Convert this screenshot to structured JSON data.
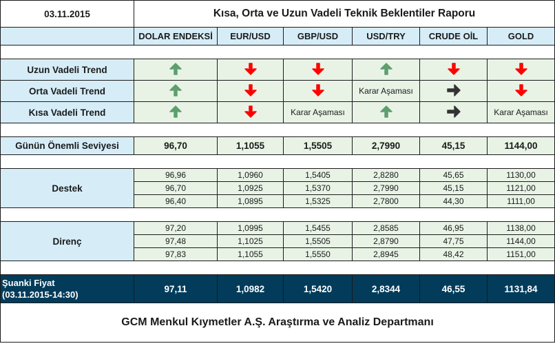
{
  "report": {
    "date": "03.11.2015",
    "title": "Kısa, Orta ve Uzun Vadeli Teknik Beklentiler Raporu",
    "footer": "GCM Menkul Kıymetler A.Ş. Araştırma ve Analiz Departmanı"
  },
  "colors": {
    "label_bg": "#d6edf8",
    "cell_bg": "#e8f3e6",
    "current_bg": "#023c5a",
    "up_arrow": "#5f9e6e",
    "down_arrow": "#ff0000",
    "side_arrow": "#333333"
  },
  "columns": [
    "DOLAR ENDEKSİ",
    "EUR/USD",
    "GBP/USD",
    "USD/TRY",
    "CRUDE OİL",
    "GOLD"
  ],
  "trends": [
    {
      "label": "Uzun Vadeli Trend",
      "values": [
        {
          "icon": "up-arrow-icon",
          "text": ""
        },
        {
          "icon": "down-arrow-icon",
          "text": ""
        },
        {
          "icon": "down-arrow-icon",
          "text": ""
        },
        {
          "icon": "up-arrow-icon",
          "text": ""
        },
        {
          "icon": "down-arrow-icon",
          "text": ""
        },
        {
          "icon": "down-arrow-icon",
          "text": ""
        }
      ]
    },
    {
      "label": "Orta Vadeli Trend",
      "values": [
        {
          "icon": "up-arrow-icon",
          "text": ""
        },
        {
          "icon": "down-arrow-icon",
          "text": ""
        },
        {
          "icon": "down-arrow-icon",
          "text": ""
        },
        {
          "icon": "",
          "text": "Karar Aşaması"
        },
        {
          "icon": "right-arrow-icon",
          "text": ""
        },
        {
          "icon": "down-arrow-icon",
          "text": ""
        }
      ]
    },
    {
      "label": "Kısa Vadeli Trend",
      "values": [
        {
          "icon": "up-arrow-icon",
          "text": ""
        },
        {
          "icon": "down-arrow-icon",
          "text": ""
        },
        {
          "icon": "",
          "text": "Karar Aşaması"
        },
        {
          "icon": "up-arrow-icon",
          "text": ""
        },
        {
          "icon": "right-arrow-icon",
          "text": ""
        },
        {
          "icon": "",
          "text": "Karar Aşaması"
        }
      ]
    }
  ],
  "key_level": {
    "label": "Günün Önemli Seviyesi",
    "values": [
      "96,70",
      "1,1055",
      "1,5505",
      "2,7990",
      "45,15",
      "1144,00"
    ]
  },
  "support": {
    "label": "Destek",
    "rows": [
      [
        "96,96",
        "1,0960",
        "1,5405",
        "2,8280",
        "45,65",
        "1130,00"
      ],
      [
        "96,70",
        "1,0925",
        "1,5370",
        "2,7990",
        "45,15",
        "1121,00"
      ],
      [
        "96,40",
        "1,0895",
        "1,5325",
        "2,7800",
        "44,30",
        "1111,00"
      ]
    ]
  },
  "resistance": {
    "label": "Direnç",
    "rows": [
      [
        "97,20",
        "1,0995",
        "1,5455",
        "2,8585",
        "46,95",
        "1138,00"
      ],
      [
        "97,48",
        "1,1025",
        "1,5505",
        "2,8790",
        "47,75",
        "1144,00"
      ],
      [
        "97,83",
        "1,1055",
        "1,5550",
        "2,8945",
        "48,42",
        "1151,00"
      ]
    ]
  },
  "current_price": {
    "label_line1": "Şuanki Fiyat",
    "label_line2": "(03.11.2015-14:30)",
    "values": [
      "97,11",
      "1,0982",
      "1,5420",
      "2,8344",
      "46,55",
      "1131,84"
    ]
  }
}
